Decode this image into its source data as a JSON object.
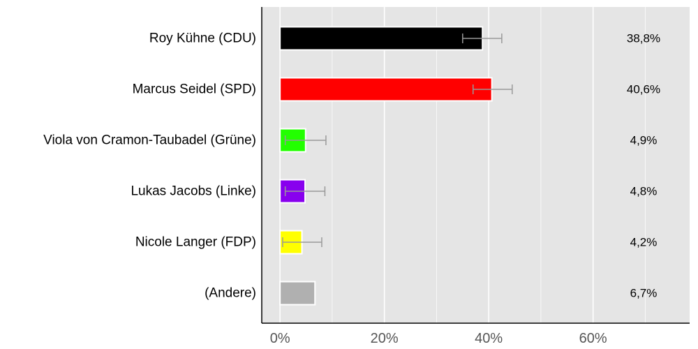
{
  "chart_data": {
    "type": "bar",
    "orientation": "horizontal",
    "categories": [
      "Roy Kühne (CDU)",
      "Marcus Seidel (SPD)",
      "Viola von Cramon-Taubadel (Grüne)",
      "Lukas Jacobs (Linke)",
      "Nicole Langer (FDP)",
      "(Andere)"
    ],
    "values": [
      38.8,
      40.6,
      4.9,
      4.8,
      4.2,
      6.7
    ],
    "value_labels": [
      "38,8%",
      "40,6%",
      "4,9%",
      "4,8%",
      "4,2%",
      "6,7%"
    ],
    "error_low": [
      35.0,
      37.0,
      1.0,
      1.0,
      0.5,
      null
    ],
    "error_high": [
      42.5,
      44.5,
      8.8,
      8.6,
      8.0,
      null
    ],
    "colors": [
      "#000000",
      "#ff0000",
      "#22ff00",
      "#8800ee",
      "#ffff00",
      "#b0b0b0"
    ],
    "xlim": [
      -3.5,
      78.5
    ],
    "x_ticks": [
      0,
      20,
      40,
      60
    ],
    "x_tick_labels": [
      "0%",
      "20%",
      "40%",
      "60%"
    ],
    "grid": true,
    "background": "#e5e5e5",
    "error_bar_color": "#999999"
  }
}
